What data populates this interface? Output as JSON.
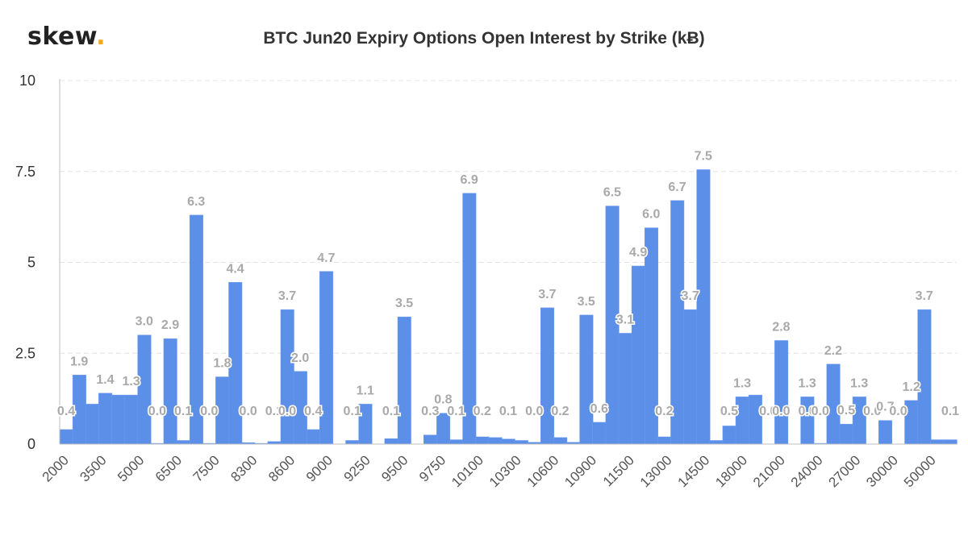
{
  "logo": {
    "text": "skew",
    "dot": "."
  },
  "chart_data": {
    "type": "bar",
    "title": "BTC Jun20 Expiry Options Open Interest by Strike (kɃ)",
    "xlabel": "",
    "ylabel": "",
    "ylim": [
      0,
      10
    ],
    "y_ticks": [
      0,
      2.5,
      5,
      7.5,
      10
    ],
    "y_tick_labels": [
      "0",
      "2.5",
      "5",
      "7.5",
      "10"
    ],
    "grid": true,
    "bar_color": "#5b8fe8",
    "x_tick_labels": [
      "2000",
      "3500",
      "5000",
      "6500",
      "7500",
      "8300",
      "8600",
      "9000",
      "9250",
      "9500",
      "9750",
      "10100",
      "10300",
      "10600",
      "10900",
      "11500",
      "13000",
      "14500",
      "18000",
      "21000",
      "24000",
      "27000",
      "30000",
      "50000"
    ],
    "values": [
      0.4,
      1.9,
      1.1,
      1.4,
      1.35,
      1.35,
      3.0,
      0.02,
      2.9,
      0.1,
      6.3,
      0.02,
      1.85,
      4.45,
      0.04,
      0.02,
      0.07,
      3.7,
      2.0,
      0.4,
      4.75,
      0.0,
      0.1,
      1.1,
      0.0,
      0.15,
      3.5,
      0.0,
      0.25,
      0.85,
      0.12,
      6.9,
      0.2,
      0.18,
      0.14,
      0.1,
      0.05,
      3.75,
      0.18,
      0.05,
      3.55,
      0.6,
      6.55,
      3.05,
      4.9,
      5.95,
      0.2,
      6.7,
      3.7,
      7.55,
      0.1,
      0.5,
      1.3,
      1.35,
      0.0,
      2.85,
      0.0,
      1.3,
      0.02,
      2.2,
      0.55,
      1.3,
      0.0,
      0.65,
      0.0,
      1.2,
      3.7,
      0.12,
      0.12
    ],
    "data_labels": [
      {
        "bar": 0,
        "text": "0.4"
      },
      {
        "bar": 1,
        "text": "1.9"
      },
      {
        "bar": 3,
        "text": "1.4"
      },
      {
        "bar": 5,
        "text": "1.3"
      },
      {
        "bar": 6,
        "text": "3.0"
      },
      {
        "bar": 7,
        "text": "0.0"
      },
      {
        "bar": 8,
        "text": "2.9"
      },
      {
        "bar": 9,
        "text": "0.1"
      },
      {
        "bar": 10,
        "text": "6.3"
      },
      {
        "bar": 11,
        "text": "0.0"
      },
      {
        "bar": 12,
        "text": "1.8"
      },
      {
        "bar": 13,
        "text": "4.4"
      },
      {
        "bar": 14,
        "text": "0.0"
      },
      {
        "bar": 16,
        "text": "0.1"
      },
      {
        "bar": 17,
        "text": "3.7"
      },
      {
        "bar": 17,
        "text": "0.0"
      },
      {
        "bar": 18,
        "text": "2.0"
      },
      {
        "bar": 19,
        "text": "0.4"
      },
      {
        "bar": 20,
        "text": "4.7"
      },
      {
        "bar": 22,
        "text": "0.1"
      },
      {
        "bar": 23,
        "text": "1.1"
      },
      {
        "bar": 25,
        "text": "0.1"
      },
      {
        "bar": 26,
        "text": "3.5"
      },
      {
        "bar": 28,
        "text": "0.3"
      },
      {
        "bar": 29,
        "text": "0.8"
      },
      {
        "bar": 30,
        "text": "0.1"
      },
      {
        "bar": 31,
        "text": "6.9"
      },
      {
        "bar": 32,
        "text": "0.2"
      },
      {
        "bar": 34,
        "text": "0.1"
      },
      {
        "bar": 36,
        "text": "0.0"
      },
      {
        "bar": 37,
        "text": "3.7"
      },
      {
        "bar": 38,
        "text": "0.2"
      },
      {
        "bar": 40,
        "text": "3.5"
      },
      {
        "bar": 41,
        "text": "0.6"
      },
      {
        "bar": 42,
        "text": "6.5"
      },
      {
        "bar": 43,
        "text": "3.1"
      },
      {
        "bar": 44,
        "text": "4.9"
      },
      {
        "bar": 45,
        "text": "6.0"
      },
      {
        "bar": 46,
        "text": "0.2"
      },
      {
        "bar": 47,
        "text": "6.7"
      },
      {
        "bar": 48,
        "text": "3.7"
      },
      {
        "bar": 49,
        "text": "7.5"
      },
      {
        "bar": 51,
        "text": "0.5"
      },
      {
        "bar": 52,
        "text": "1.3"
      },
      {
        "bar": 54,
        "text": "0.0"
      },
      {
        "bar": 55,
        "text": "2.8"
      },
      {
        "bar": 55,
        "text": "0.0"
      },
      {
        "bar": 57,
        "text": "1.3"
      },
      {
        "bar": 57,
        "text": "0.0"
      },
      {
        "bar": 58,
        "text": "0.0"
      },
      {
        "bar": 59,
        "text": "2.2"
      },
      {
        "bar": 60,
        "text": "0.5"
      },
      {
        "bar": 61,
        "text": "1.3"
      },
      {
        "bar": 62,
        "text": "0.0"
      },
      {
        "bar": 63,
        "text": "0.7"
      },
      {
        "bar": 64,
        "text": "0.0"
      },
      {
        "bar": 65,
        "text": "1.2"
      },
      {
        "bar": 66,
        "text": "3.7"
      },
      {
        "bar": 68,
        "text": "0.1"
      }
    ]
  }
}
